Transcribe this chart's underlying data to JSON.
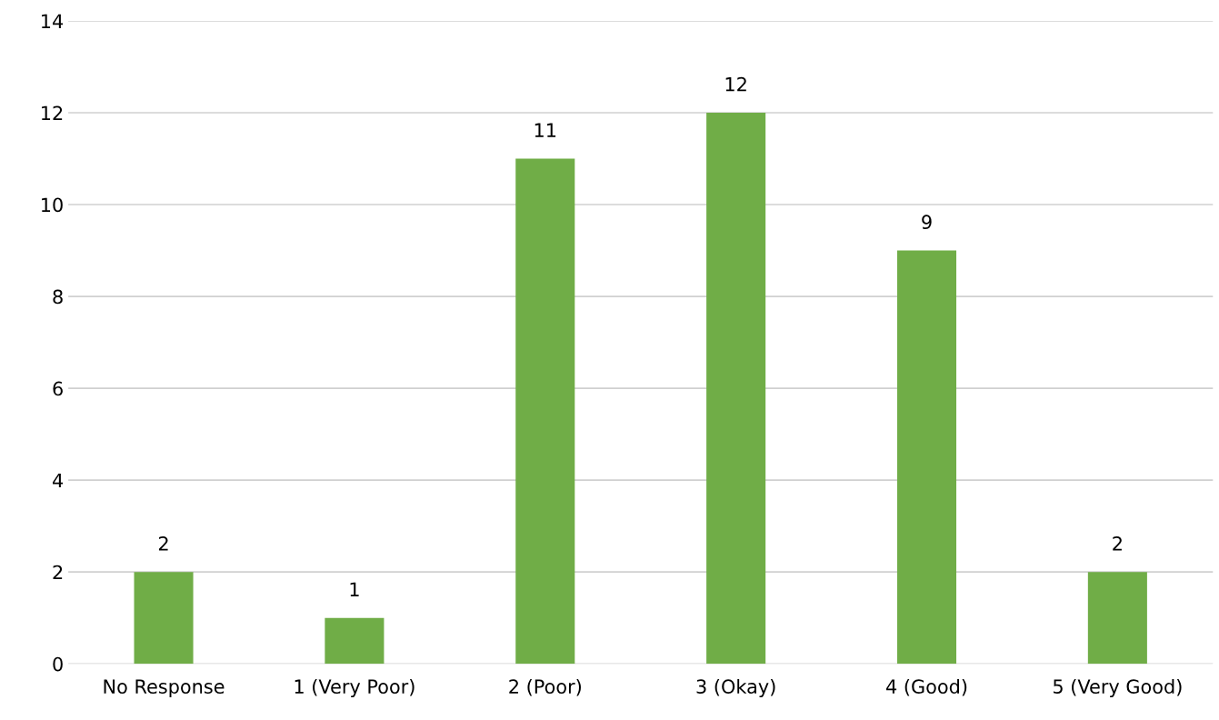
{
  "chart_data": {
    "type": "bar",
    "categories": [
      "No Response",
      "1 (Very Poor)",
      "2 (Poor)",
      "3 (Okay)",
      "4 (Good)",
      "5 (Very Good)"
    ],
    "values": [
      2,
      1,
      11,
      12,
      9,
      2
    ],
    "color": "#70ad47",
    "ylim": [
      0,
      14
    ],
    "yticks": [
      0,
      2,
      4,
      6,
      8,
      10,
      12,
      14
    ],
    "grid": "y",
    "data_labels": true
  }
}
